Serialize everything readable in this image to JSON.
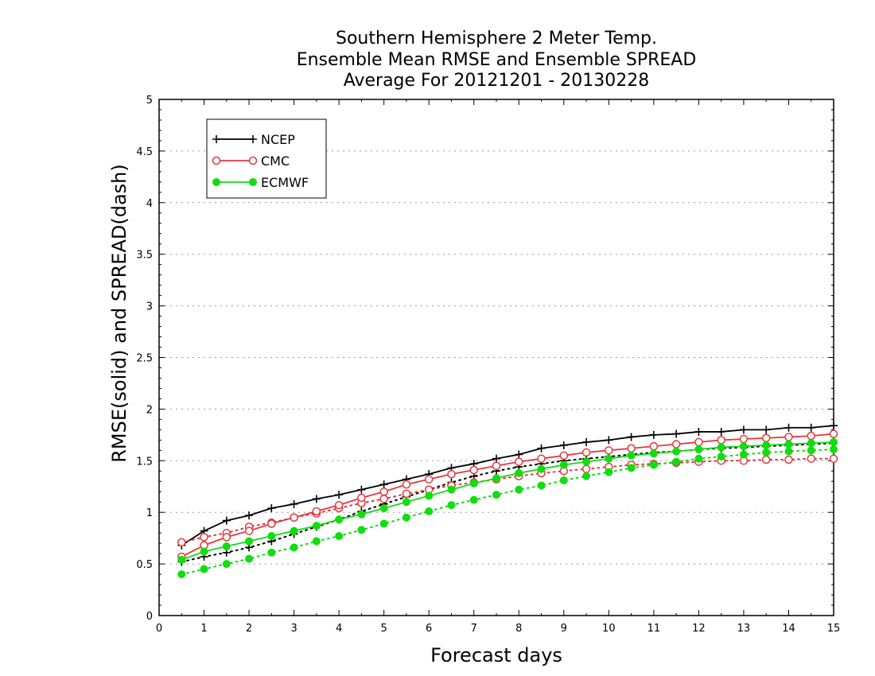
{
  "chart_data": {
    "type": "line",
    "title_lines": [
      "Southern Hemisphere 2 Meter Temp.",
      "Ensemble Mean RMSE and Ensemble SPREAD",
      "Average For 20121201 - 20130228"
    ],
    "xlabel": "Forecast days",
    "ylabel": "RMSE(solid) and SPREAD(dash)",
    "xlim": [
      0,
      15
    ],
    "ylim": [
      0,
      5
    ],
    "xticks": [
      "0",
      "1",
      "2",
      "3",
      "4",
      "5",
      "6",
      "7",
      "8",
      "9",
      "10",
      "11",
      "12",
      "13",
      "14",
      "15"
    ],
    "yticks": [
      "0",
      "0.5",
      "1",
      "1.5",
      "2",
      "2.5",
      "3",
      "3.5",
      "4",
      "4.5",
      "5"
    ],
    "grid": "horizontal dotted",
    "legend_placement": "top-left",
    "x": [
      0.5,
      1,
      1.5,
      2,
      2.5,
      3,
      3.5,
      4,
      4.5,
      5,
      5.5,
      6,
      6.5,
      7,
      7.5,
      8,
      8.5,
      9,
      9.5,
      10,
      10.5,
      11,
      11.5,
      12,
      12.5,
      13,
      13.5,
      14,
      14.5,
      15
    ],
    "series": [
      {
        "name": "NCEP",
        "color": "#000000",
        "marker": "plus",
        "rmse": [
          0.68,
          0.82,
          0.92,
          0.97,
          1.04,
          1.08,
          1.13,
          1.17,
          1.22,
          1.27,
          1.32,
          1.37,
          1.43,
          1.47,
          1.52,
          1.56,
          1.62,
          1.65,
          1.68,
          1.7,
          1.73,
          1.75,
          1.76,
          1.78,
          1.78,
          1.8,
          1.8,
          1.82,
          1.82,
          1.84
        ],
        "spread": [
          0.52,
          0.57,
          0.61,
          0.66,
          0.72,
          0.79,
          0.86,
          0.93,
          1.01,
          1.08,
          1.15,
          1.22,
          1.29,
          1.35,
          1.4,
          1.44,
          1.47,
          1.5,
          1.52,
          1.54,
          1.56,
          1.58,
          1.59,
          1.61,
          1.62,
          1.63,
          1.64,
          1.65,
          1.66,
          1.67
        ]
      },
      {
        "name": "CMC",
        "color": "#e8363c",
        "marker": "circle-open",
        "rmse": [
          0.57,
          0.68,
          0.76,
          0.82,
          0.89,
          0.95,
          1.01,
          1.07,
          1.14,
          1.2,
          1.27,
          1.32,
          1.37,
          1.41,
          1.45,
          1.49,
          1.52,
          1.55,
          1.58,
          1.6,
          1.62,
          1.64,
          1.66,
          1.68,
          1.7,
          1.71,
          1.72,
          1.73,
          1.74,
          1.76
        ],
        "spread": [
          0.71,
          0.76,
          0.8,
          0.86,
          0.9,
          0.95,
          0.99,
          1.04,
          1.09,
          1.13,
          1.18,
          1.22,
          1.26,
          1.29,
          1.32,
          1.35,
          1.38,
          1.4,
          1.42,
          1.44,
          1.46,
          1.47,
          1.48,
          1.49,
          1.5,
          1.5,
          1.51,
          1.51,
          1.52,
          1.52
        ]
      },
      {
        "name": "ECMWF",
        "color": "#11dd11",
        "marker": "circle-filled",
        "rmse": [
          0.54,
          0.62,
          0.67,
          0.72,
          0.77,
          0.82,
          0.87,
          0.93,
          0.98,
          1.04,
          1.1,
          1.16,
          1.22,
          1.28,
          1.33,
          1.38,
          1.42,
          1.46,
          1.49,
          1.52,
          1.55,
          1.57,
          1.59,
          1.61,
          1.63,
          1.64,
          1.65,
          1.66,
          1.67,
          1.68
        ],
        "spread": [
          0.4,
          0.45,
          0.5,
          0.55,
          0.61,
          0.66,
          0.72,
          0.77,
          0.83,
          0.89,
          0.95,
          1.01,
          1.07,
          1.12,
          1.17,
          1.22,
          1.26,
          1.31,
          1.35,
          1.39,
          1.43,
          1.46,
          1.49,
          1.52,
          1.54,
          1.56,
          1.58,
          1.59,
          1.6,
          1.61
        ]
      }
    ]
  }
}
